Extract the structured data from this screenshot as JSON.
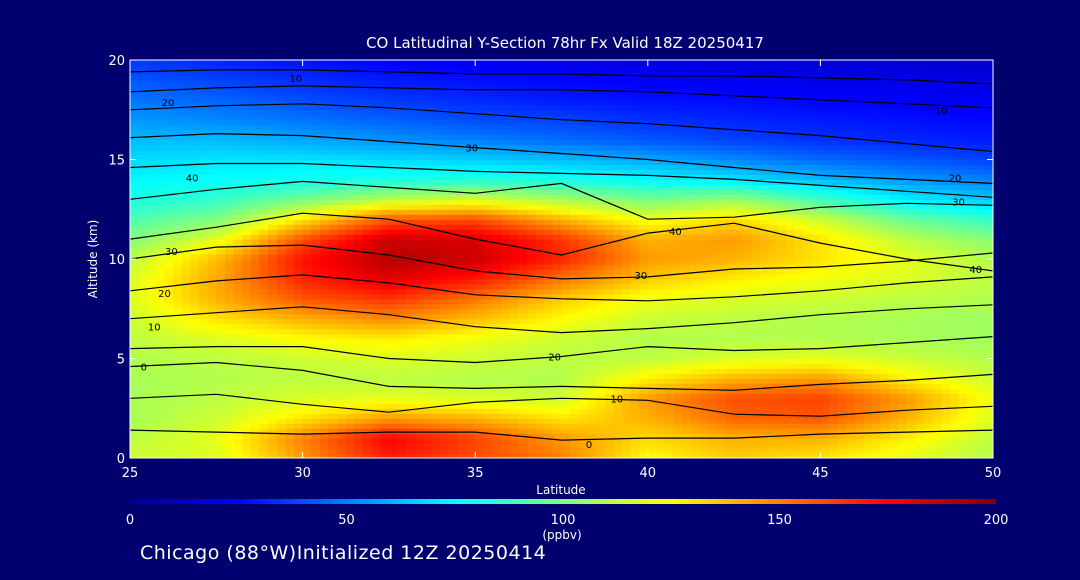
{
  "chart_data": {
    "type": "heatmap",
    "title": "CO Latitudinal Y-Section 78hr  Fx Valid 18Z 20250417",
    "xlabel": "Latitude",
    "ylabel": "Altitude (km)",
    "xlim": [
      25,
      50
    ],
    "ylim": [
      0,
      20
    ],
    "x_ticks": [
      "25",
      "30",
      "35",
      "40",
      "45",
      "50"
    ],
    "y_ticks": [
      "0",
      "5",
      "10",
      "15",
      "20"
    ],
    "colorbar": {
      "label": "(ppbv)",
      "range": [
        0,
        200
      ],
      "ticks": [
        "0",
        "50",
        "100",
        "150",
        "200"
      ]
    },
    "grid_lat": [
      25,
      27.5,
      30,
      32.5,
      35,
      37.5,
      40,
      42.5,
      45,
      47.5,
      50
    ],
    "grid_alt": [
      0,
      1,
      2,
      3,
      4,
      5,
      6,
      7,
      8,
      9,
      10,
      11,
      12,
      13,
      14,
      15,
      16,
      17,
      18,
      19,
      20
    ],
    "values": [
      [
        115,
        118,
        145,
        170,
        160,
        150,
        125,
        135,
        130,
        120,
        110
      ],
      [
        112,
        120,
        150,
        175,
        162,
        145,
        132,
        140,
        140,
        128,
        112
      ],
      [
        108,
        115,
        130,
        145,
        140,
        130,
        140,
        155,
        158,
        140,
        118
      ],
      [
        108,
        112,
        118,
        120,
        118,
        115,
        145,
        160,
        162,
        145,
        122
      ],
      [
        108,
        110,
        112,
        112,
        110,
        110,
        128,
        140,
        145,
        128,
        115
      ],
      [
        110,
        112,
        115,
        118,
        115,
        112,
        112,
        118,
        120,
        115,
        110
      ],
      [
        112,
        118,
        125,
        128,
        122,
        115,
        110,
        110,
        110,
        108,
        106
      ],
      [
        115,
        130,
        140,
        148,
        138,
        125,
        115,
        112,
        110,
        108,
        106
      ],
      [
        118,
        140,
        158,
        165,
        152,
        135,
        122,
        118,
        115,
        112,
        110
      ],
      [
        118,
        142,
        168,
        180,
        170,
        152,
        135,
        128,
        122,
        118,
        112
      ],
      [
        112,
        138,
        172,
        190,
        185,
        168,
        145,
        140,
        130,
        120,
        110
      ],
      [
        100,
        120,
        160,
        185,
        182,
        165,
        140,
        145,
        130,
        112,
        102
      ],
      [
        90,
        100,
        130,
        158,
        160,
        140,
        122,
        132,
        115,
        95,
        85
      ],
      [
        80,
        85,
        98,
        112,
        118,
        108,
        98,
        105,
        88,
        72,
        65
      ],
      [
        74,
        76,
        78,
        80,
        82,
        80,
        75,
        70,
        62,
        55,
        50
      ],
      [
        68,
        70,
        70,
        68,
        66,
        62,
        58,
        52,
        46,
        42,
        38
      ],
      [
        62,
        62,
        58,
        54,
        50,
        46,
        42,
        38,
        34,
        32,
        30
      ],
      [
        55,
        52,
        48,
        44,
        40,
        38,
        34,
        32,
        30,
        28,
        26
      ],
      [
        48,
        45,
        40,
        36,
        33,
        30,
        28,
        27,
        25,
        24,
        22
      ],
      [
        42,
        38,
        34,
        30,
        28,
        26,
        24,
        22,
        20,
        20,
        18
      ],
      [
        36,
        32,
        28,
        25,
        22,
        20,
        18,
        17,
        16,
        15,
        14
      ]
    ],
    "contour_labels": [
      {
        "text": "10",
        "lat": 29.8,
        "alt": 19.1
      },
      {
        "text": "20",
        "lat": 26.1,
        "alt": 17.9
      },
      {
        "text": "10",
        "lat": 48.5,
        "alt": 17.5
      },
      {
        "text": "30",
        "lat": 34.9,
        "alt": 15.6
      },
      {
        "text": "40",
        "lat": 26.8,
        "alt": 14.1
      },
      {
        "text": "20",
        "lat": 48.9,
        "alt": 14.1
      },
      {
        "text": "30",
        "lat": 49.0,
        "alt": 12.9
      },
      {
        "text": "40",
        "lat": 40.8,
        "alt": 11.4
      },
      {
        "text": "30",
        "lat": 26.2,
        "alt": 10.4
      },
      {
        "text": "40",
        "lat": 49.5,
        "alt": 9.5
      },
      {
        "text": "30",
        "lat": 39.8,
        "alt": 9.2
      },
      {
        "text": "20",
        "lat": 26.0,
        "alt": 8.3
      },
      {
        "text": "10",
        "lat": 25.7,
        "alt": 6.6
      },
      {
        "text": "20",
        "lat": 37.3,
        "alt": 5.1
      },
      {
        "text": "0",
        "lat": 25.4,
        "alt": 4.6
      },
      {
        "text": "10",
        "lat": 39.1,
        "alt": 3.0
      },
      {
        "text": "0",
        "lat": 38.3,
        "alt": 0.7
      }
    ]
  },
  "footer": {
    "text": "Chicago (88°W)Initialized 12Z 20250414"
  }
}
